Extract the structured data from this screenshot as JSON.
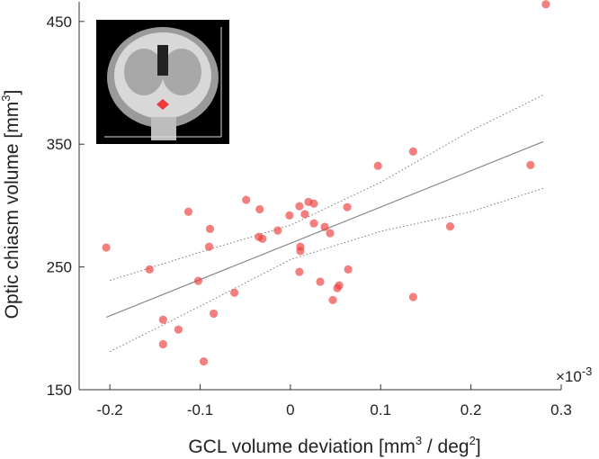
{
  "chart_data": {
    "type": "scatter",
    "x_label": [
      "GCL volume deviation [mm",
      "3",
      " / deg",
      "2",
      "]"
    ],
    "y_label": [
      "Optic chiasm volume [mm",
      "3",
      "]"
    ],
    "x_multiplier": [
      "×10",
      "-3"
    ],
    "xlim": [
      -0.234,
      0.3
    ],
    "ylim": [
      150,
      466
    ],
    "xticks": [
      -0.2,
      -0.1,
      0,
      0.1,
      0.2,
      0.3
    ],
    "yticks": [
      150,
      250,
      350,
      450
    ],
    "points": {
      "color": "#ee3b3b",
      "x": [
        -0.204,
        -0.156,
        -0.113,
        -0.089,
        -0.09,
        -0.102,
        -0.141,
        -0.141,
        -0.124,
        -0.085,
        -0.096,
        -0.062,
        -0.049,
        -0.034,
        -0.035,
        -0.031,
        -0.014,
        -0.001,
        0.01,
        0.016,
        0.02,
        0.026,
        0.026,
        0.011,
        0.011,
        0.01,
        0.038,
        0.044,
        0.063,
        0.064,
        0.033,
        0.054,
        0.052,
        0.047,
        0.097,
        0.136,
        0.136,
        0.177,
        0.266,
        0.283
      ],
      "y": [
        265.8,
        248,
        295,
        281,
        266.5,
        238.6,
        207,
        187,
        199,
        212,
        173,
        229,
        304.6,
        297,
        274.5,
        273,
        279.7,
        292,
        299.5,
        293,
        303,
        301.6,
        285.5,
        266.5,
        263,
        246,
        282.6,
        277.5,
        298.7,
        248,
        238,
        235,
        232.8,
        223,
        332.4,
        344,
        225.5,
        283,
        333,
        464
      ]
    },
    "fit": {
      "color": "#888888",
      "x": [
        -0.204,
        0.28
      ],
      "y": [
        209,
        352
      ]
    },
    "ci_upper": {
      "color": "#777777",
      "x": [
        -0.2,
        -0.1,
        0,
        0.1,
        0.2,
        0.28
      ],
      "y": [
        239,
        262,
        284,
        319,
        361,
        390
      ]
    },
    "ci_lower": {
      "color": "#777777",
      "x": [
        -0.2,
        -0.1,
        0,
        0.1,
        0.2,
        0.28
      ],
      "y": [
        181,
        218,
        256,
        279,
        295,
        314
      ]
    }
  }
}
